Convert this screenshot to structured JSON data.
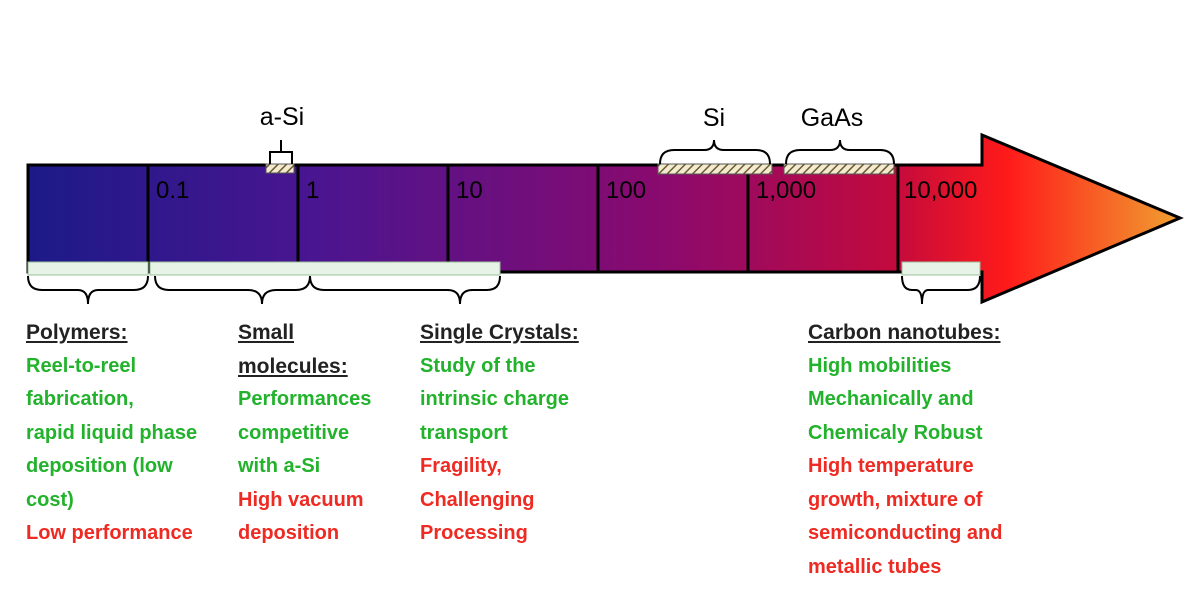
{
  "colors": {
    "pro_text": "#22b22c",
    "con_text": "#ee2a22",
    "arrow_start": "#1c1a88",
    "arrow_mid": "#8a0a6e",
    "arrow_end": "#ff1a1a",
    "arrow_tip": "#f0a030",
    "range_bar": "#e6f3e6"
  },
  "scale_labels": [
    "0.1",
    "1",
    "10",
    "100",
    "1,000",
    "10,000"
  ],
  "materials": {
    "a_si": "a-Si",
    "si": "Si",
    "gaas": "GaAs"
  },
  "columns": {
    "polymers": {
      "heading": "Polymers:",
      "pros": [
        "Reel-to-reel",
        "fabrication,",
        "rapid liquid phase",
        "deposition (low",
        "cost)"
      ],
      "cons": [
        "Low performance"
      ]
    },
    "small_molecules": {
      "heading": [
        "Small",
        "molecules:"
      ],
      "pros": [
        "Performances",
        "competitive",
        "with a-Si"
      ],
      "cons": [
        "High vacuum",
        "deposition"
      ]
    },
    "single_crystals": {
      "heading": "Single Crystals:",
      "pros": [
        "Study of the",
        "intrinsic charge",
        "transport"
      ],
      "cons": [
        "Fragility,",
        "Challenging",
        "Processing"
      ]
    },
    "carbon_nanotubes": {
      "heading": "Carbon nanotubes:",
      "pros": [
        "High mobilities",
        "Mechanically and",
        "Chemicaly Robust"
      ],
      "cons": [
        "High temperature",
        "growth, mixture of",
        "semiconducting and",
        "metallic tubes"
      ]
    }
  }
}
